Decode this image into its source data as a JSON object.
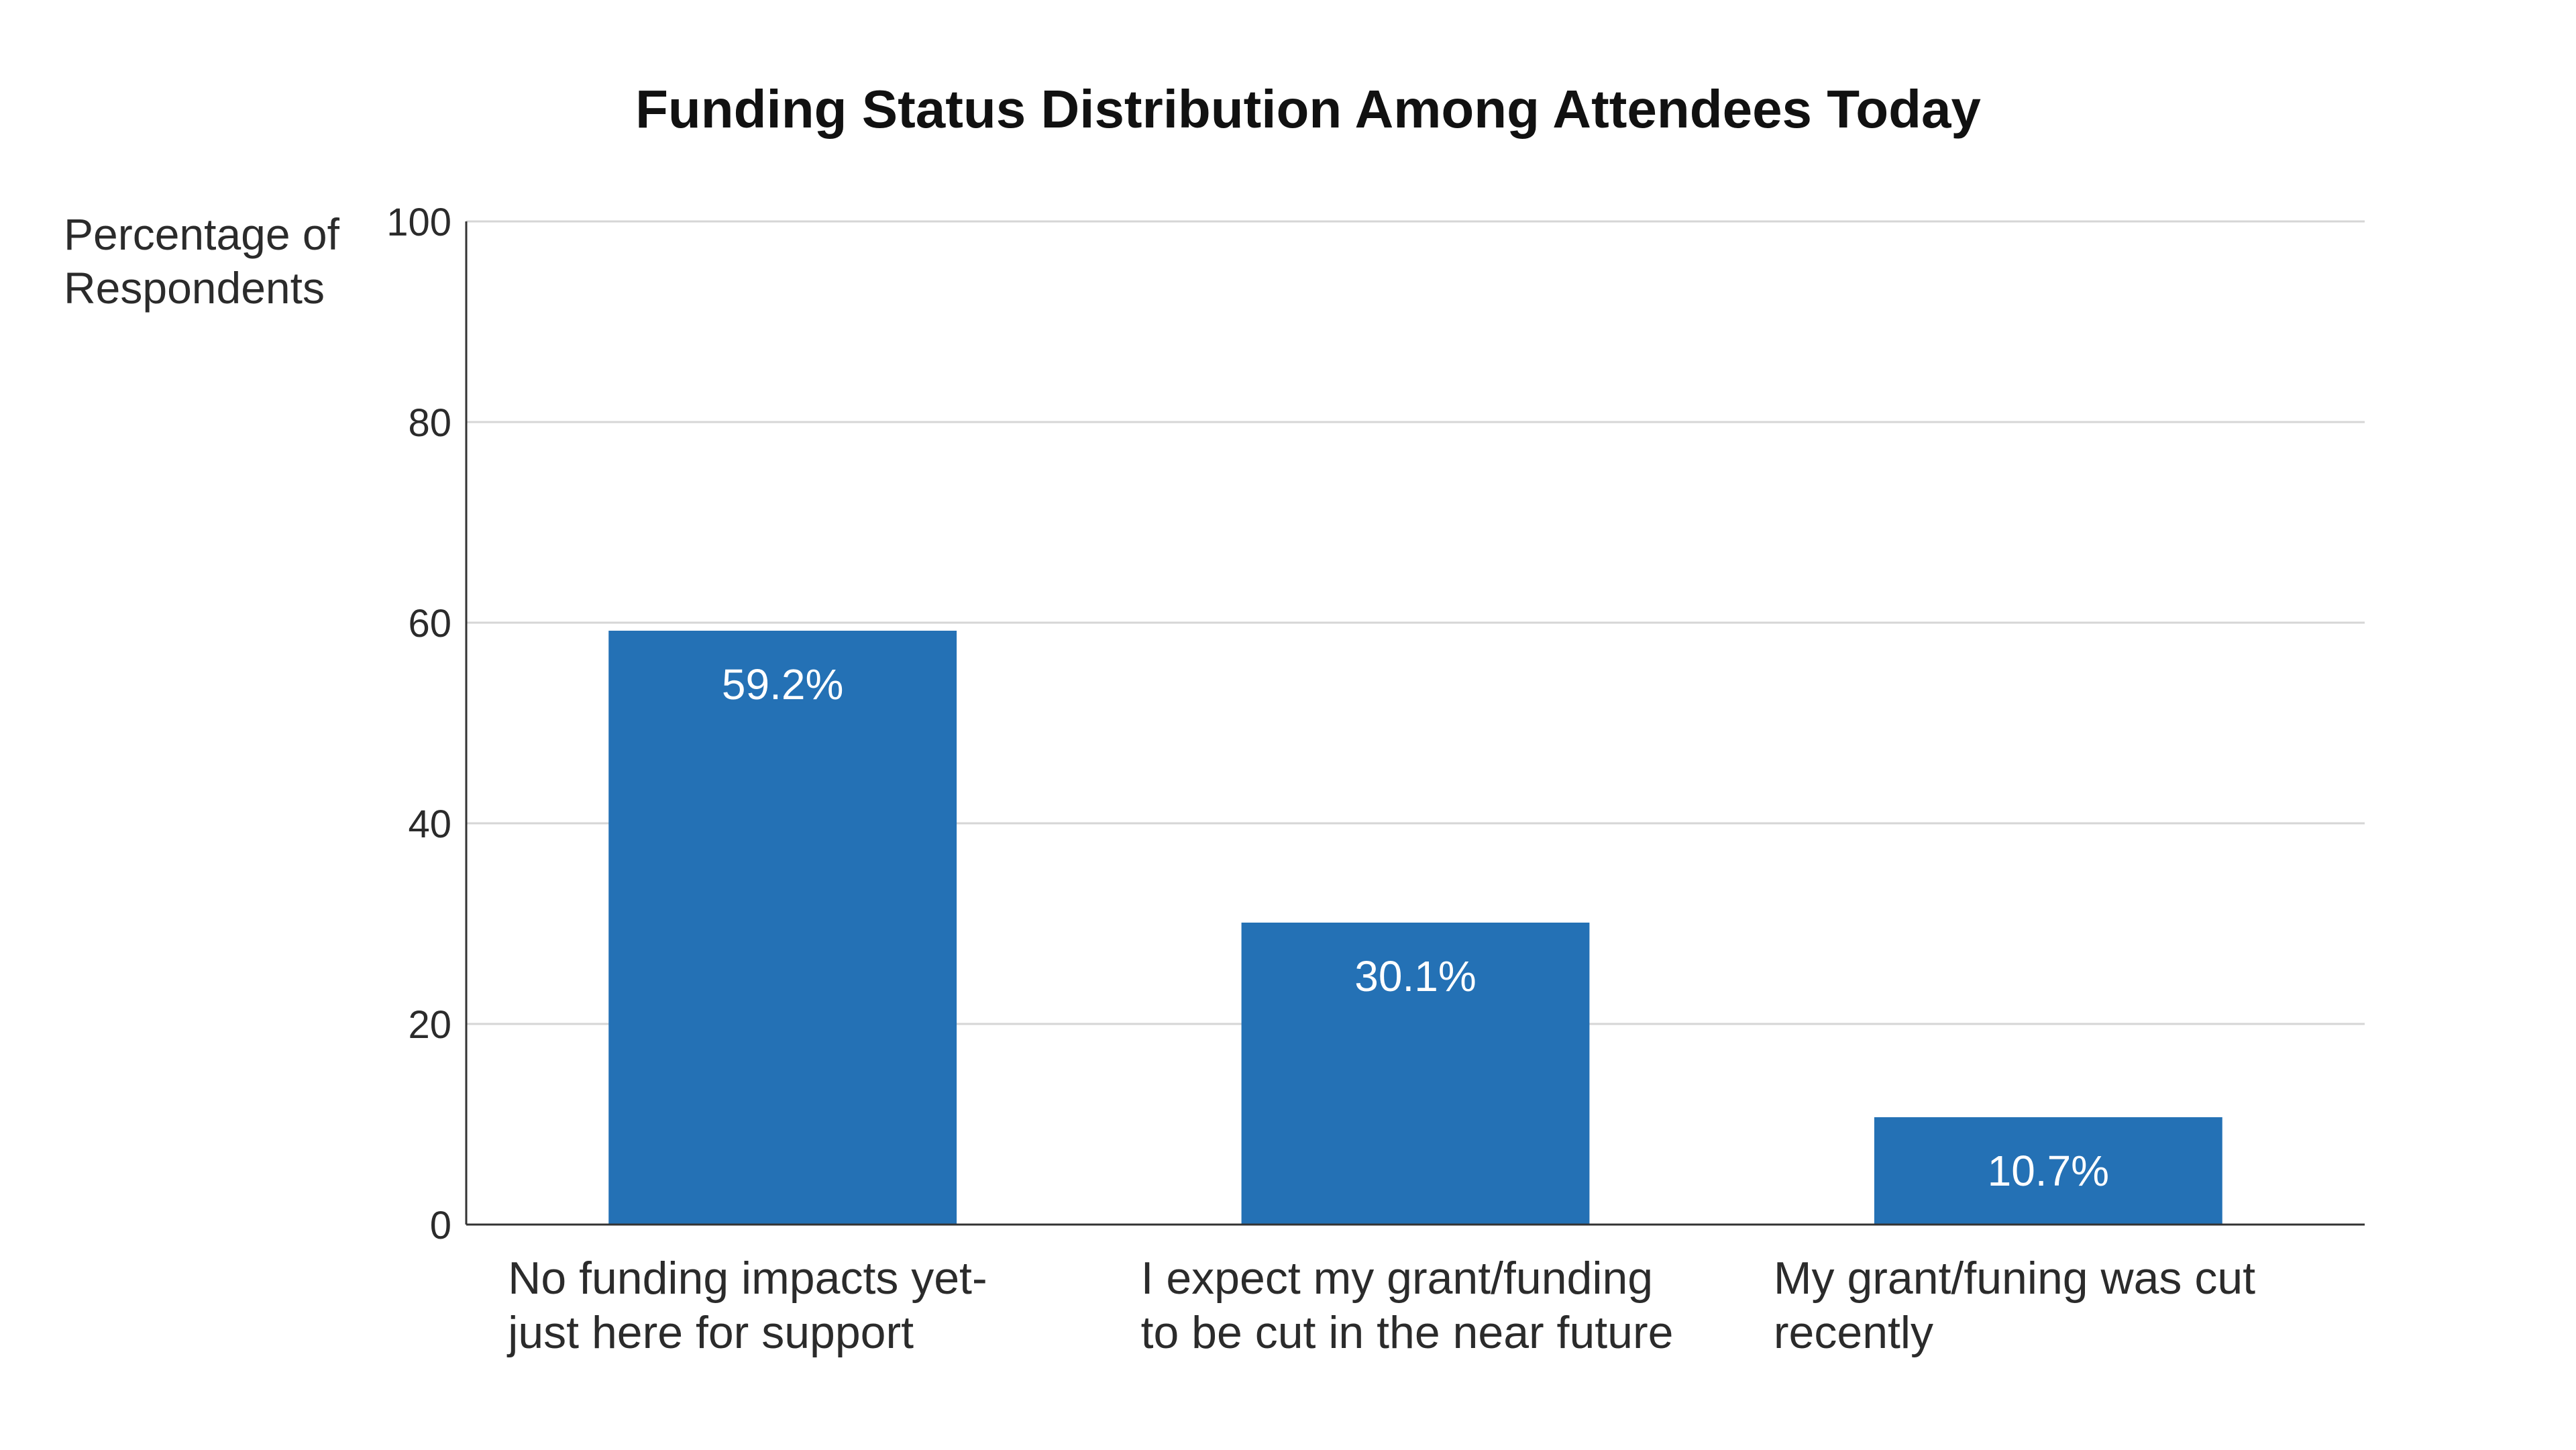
{
  "chart_data": {
    "type": "bar",
    "title": "Funding Status Distribution Among Attendees Today",
    "ylabel": "Percentage of Respondents",
    "ylabel_lines": [
      "Percentage of",
      "Respondents"
    ],
    "xlabel": "",
    "categories": [
      "No funding impacts yet- just here for support",
      "I expect my grant/funding to be cut in the near future",
      "My grant/funing was cut recently"
    ],
    "category_lines": [
      [
        "No funding impacts yet-",
        "just here for support"
      ],
      [
        "I expect my grant/funding",
        "to be cut in the near future"
      ],
      [
        "My grant/funing was cut",
        "recently"
      ]
    ],
    "values": [
      59.2,
      30.1,
      10.7
    ],
    "data_labels": [
      "59.2%",
      "30.1%",
      "10.7%"
    ],
    "ylim": [
      0,
      100
    ],
    "yticks": [
      0,
      20,
      40,
      60,
      80,
      100
    ],
    "grid": true,
    "legend": "none",
    "bar_color": "#2471b5",
    "grid_color": "#d6d6d6",
    "axis_color": "#333333"
  }
}
